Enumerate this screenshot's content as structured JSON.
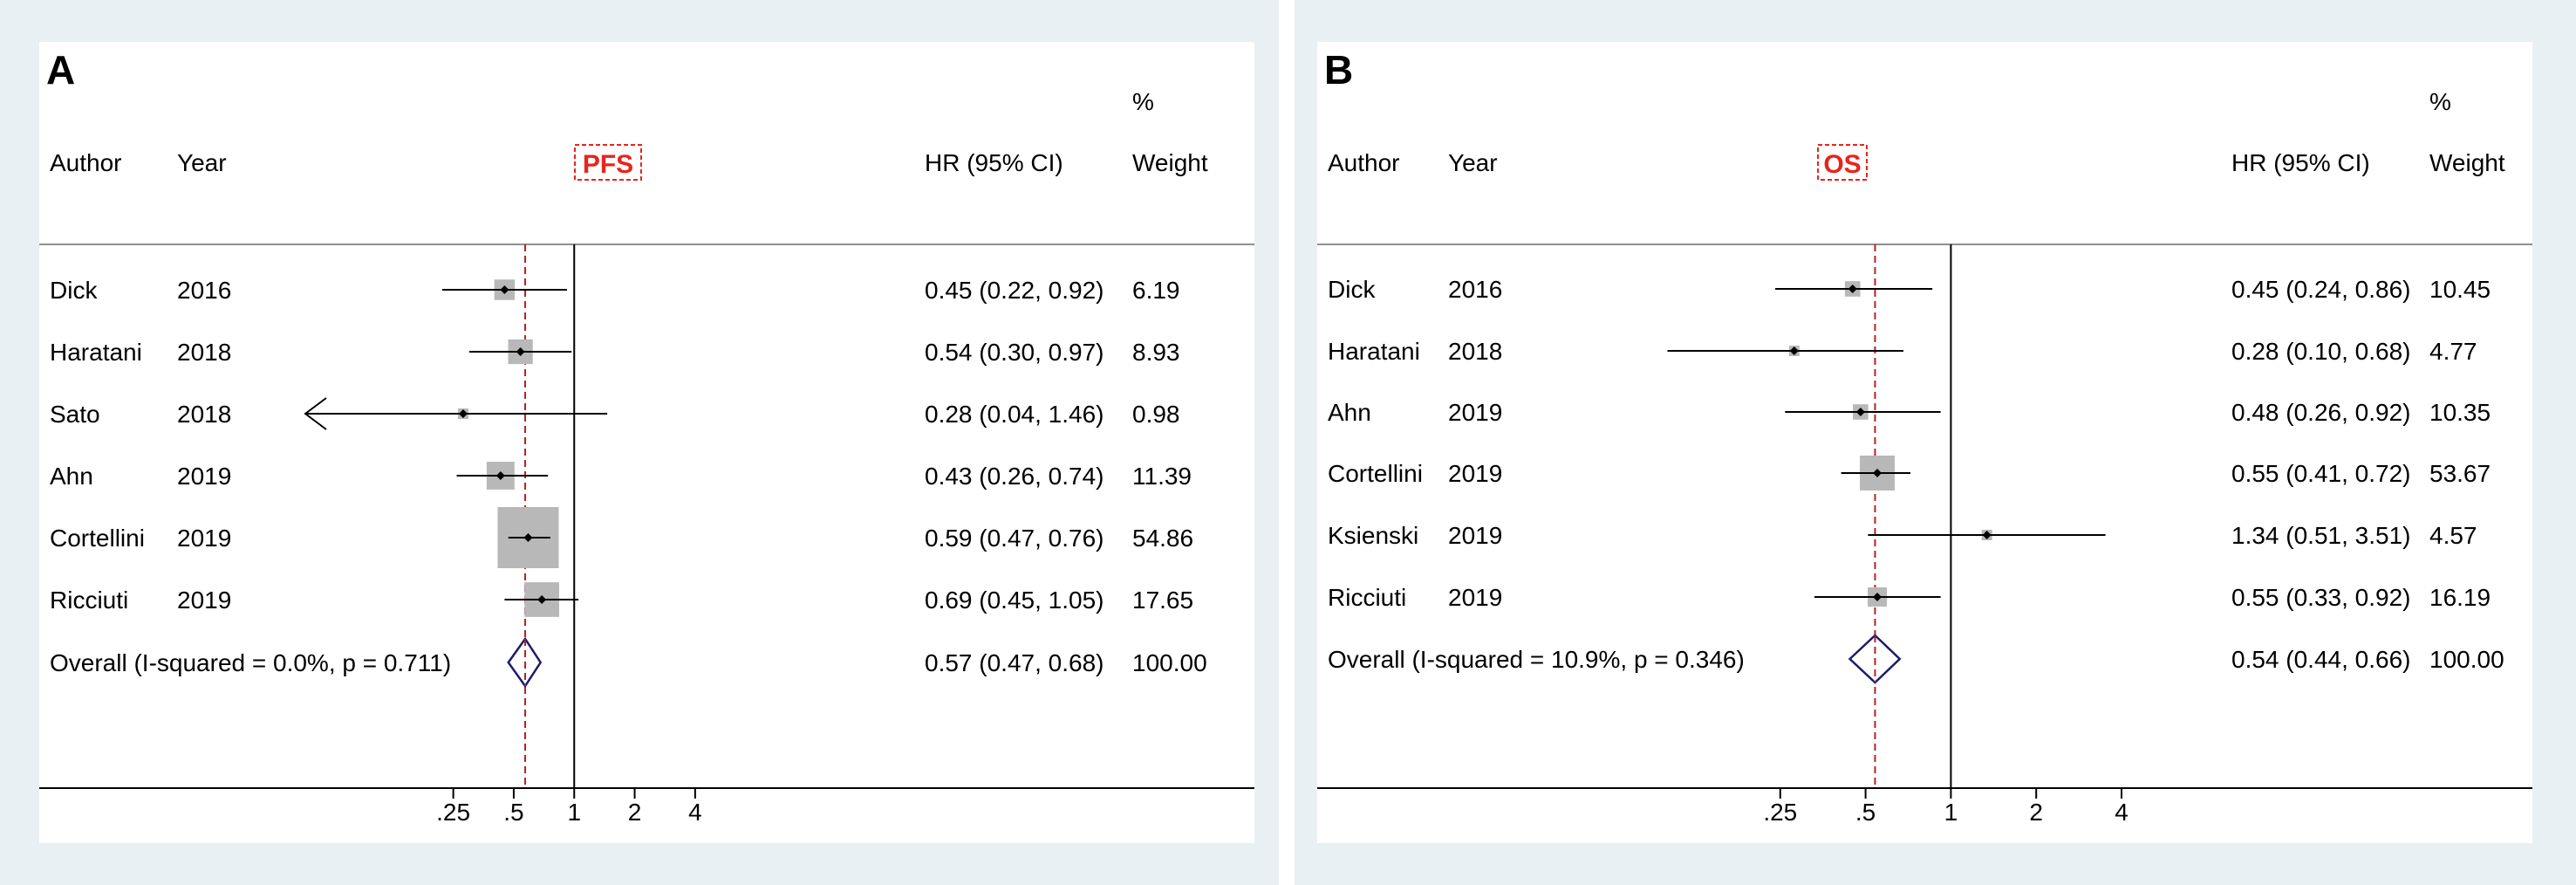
{
  "chart_data": [
    {
      "type": "forest",
      "panel_label": "A",
      "title": "PFS",
      "columns": {
        "author": "Author",
        "year": "Year",
        "hr": "HR (95% CI)",
        "weight_top": "%",
        "weight": "Weight"
      },
      "xscale": "log",
      "xlim": [
        0.16,
        5.3
      ],
      "xticks": [
        {
          "value": 0.25,
          "label": ".25"
        },
        {
          "value": 0.5,
          "label": ".5"
        },
        {
          "value": 1,
          "label": "1"
        },
        {
          "value": 2,
          "label": "2"
        },
        {
          "value": 4,
          "label": "4"
        }
      ],
      "null_line": 1,
      "pooled_line": 0.57,
      "studies": [
        {
          "author": "Dick",
          "year": "2016",
          "hr": 0.45,
          "lo": 0.22,
          "hi": 0.92,
          "weight": 6.19,
          "ci_text": "0.45 (0.22, 0.92)",
          "weight_text": "6.19"
        },
        {
          "author": "Haratani",
          "year": "2018",
          "hr": 0.54,
          "lo": 0.3,
          "hi": 0.97,
          "weight": 8.93,
          "ci_text": "0.54 (0.30, 0.97)",
          "weight_text": "8.93"
        },
        {
          "author": "Sato",
          "year": "2018",
          "hr": 0.28,
          "lo": 0.04,
          "hi": 1.46,
          "weight": 0.98,
          "ci_text": "0.28 (0.04, 1.46)",
          "weight_text": "0.98",
          "truncated_left": true
        },
        {
          "author": "Ahn",
          "year": "2019",
          "hr": 0.43,
          "lo": 0.26,
          "hi": 0.74,
          "weight": 11.39,
          "ci_text": "0.43 (0.26, 0.74)",
          "weight_text": "11.39"
        },
        {
          "author": "Cortellini",
          "year": "2019",
          "hr": 0.59,
          "lo": 0.47,
          "hi": 0.76,
          "weight": 54.86,
          "ci_text": "0.59 (0.47, 0.76)",
          "weight_text": "54.86"
        },
        {
          "author": "Ricciuti",
          "year": "2019",
          "hr": 0.69,
          "lo": 0.45,
          "hi": 1.05,
          "weight": 17.65,
          "ci_text": "0.69 (0.45, 1.05)",
          "weight_text": "17.65"
        }
      ],
      "overall": {
        "label": "Overall  (I-squared = 0.0%, p = 0.711)",
        "hr": 0.57,
        "lo": 0.47,
        "hi": 0.68,
        "ci_text": "0.57 (0.47, 0.68)",
        "weight_text": "100.00"
      }
    },
    {
      "type": "forest",
      "panel_label": "B",
      "title": "OS",
      "columns": {
        "author": "Author",
        "year": "Year",
        "hr": "HR (95% CI)",
        "weight_top": "%",
        "weight": "Weight"
      },
      "xscale": "log",
      "xlim": [
        0.08,
        5.7
      ],
      "xticks": [
        {
          "value": 0.25,
          "label": ".25"
        },
        {
          "value": 0.5,
          "label": ".5"
        },
        {
          "value": 1,
          "label": "1"
        },
        {
          "value": 2,
          "label": "2"
        },
        {
          "value": 4,
          "label": "4"
        }
      ],
      "null_line": 1,
      "pooled_line": 0.54,
      "studies": [
        {
          "author": "Dick",
          "year": "2016",
          "hr": 0.45,
          "lo": 0.24,
          "hi": 0.86,
          "weight": 10.45,
          "ci_text": "0.45 (0.24, 0.86)",
          "weight_text": "10.45"
        },
        {
          "author": "Haratani",
          "year": "2018",
          "hr": 0.28,
          "lo": 0.1,
          "hi": 0.68,
          "weight": 4.77,
          "ci_text": "0.28 (0.10, 0.68)",
          "weight_text": "4.77"
        },
        {
          "author": "Ahn",
          "year": "2019",
          "hr": 0.48,
          "lo": 0.26,
          "hi": 0.92,
          "weight": 10.35,
          "ci_text": "0.48 (0.26, 0.92)",
          "weight_text": "10.35"
        },
        {
          "author": "Cortellini",
          "year": "2019",
          "hr": 0.55,
          "lo": 0.41,
          "hi": 0.72,
          "weight": 53.67,
          "ci_text": "0.55 (0.41, 0.72)",
          "weight_text": "53.67"
        },
        {
          "author": "Ksienski",
          "year": "2019",
          "hr": 1.34,
          "lo": 0.51,
          "hi": 3.51,
          "weight": 4.57,
          "ci_text": "1.34 (0.51, 3.51)",
          "weight_text": "4.57"
        },
        {
          "author": "Ricciuti",
          "year": "2019",
          "hr": 0.55,
          "lo": 0.33,
          "hi": 0.92,
          "weight": 16.19,
          "ci_text": "0.55 (0.33, 0.92)",
          "weight_text": "16.19"
        }
      ],
      "overall": {
        "label": "Overall  (I-squared = 10.9%, p = 0.346)",
        "hr": 0.54,
        "lo": 0.44,
        "hi": 0.66,
        "ci_text": "0.54 (0.44, 0.66)",
        "weight_text": "100.00"
      }
    }
  ]
}
